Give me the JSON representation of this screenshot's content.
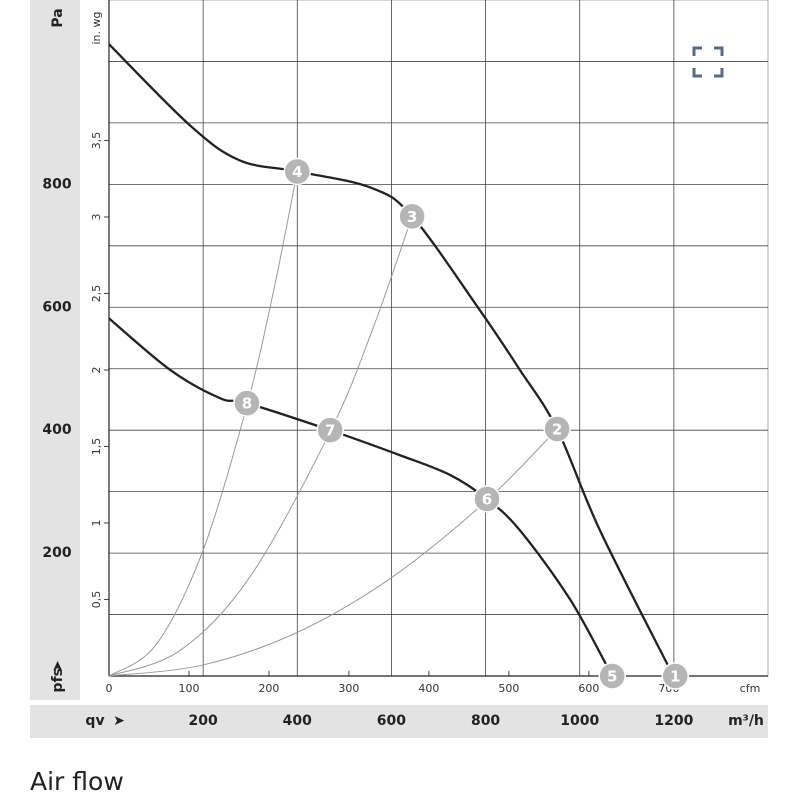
{
  "chart_data": {
    "type": "line",
    "title": "Air flow",
    "y_label": "Pa",
    "y2_label": "in. wg",
    "y_symbol": "pfs",
    "x_symbol": "qv",
    "x_label": "m³/h",
    "x2_label": "cfm",
    "xlim": [
      0,
      1400
    ],
    "xticks": [
      200,
      400,
      600,
      800,
      1000,
      1200
    ],
    "ylim": [
      0,
      1100
    ],
    "yticks": [
      200,
      400,
      600,
      800
    ],
    "yticks_minor": [
      100,
      300,
      500,
      700,
      900,
      1000
    ],
    "x2lim": [
      0,
      824
    ],
    "x2ticks": [
      0,
      100,
      200,
      300,
      400,
      500,
      600,
      700
    ],
    "y2lim": [
      0,
      4.418
    ],
    "y2ticks": [
      {
        "value": 0.5,
        "label": "0,5"
      },
      1,
      {
        "value": 1.5,
        "label": "1,5"
      },
      2,
      {
        "value": 2.5,
        "label": "2,5"
      },
      3,
      {
        "value": 3.5,
        "label": "3,5"
      }
    ],
    "grid": true,
    "series": [
      {
        "color": "#222222",
        "x": [
          0,
          172,
          278,
          400,
          555,
          644,
          788,
          873,
          952,
          1043,
          1199
        ],
        "values": [
          1028,
          896,
          839,
          821,
          795,
          748,
          595,
          498,
          402,
          237,
          0
        ]
      },
      {
        "color": "#222222",
        "x": [
          0,
          130,
          236,
          293,
          470,
          619,
          725,
          803,
          873,
          980,
          1069
        ],
        "values": [
          582,
          498,
          452,
          444,
          400,
          359,
          327,
          288,
          237,
          124,
          0
        ]
      }
    ],
    "system_curves": [
      {
        "color": "#999999",
        "x": [
          0,
          100,
          200,
          293,
          350,
          400
        ],
        "values": [
          0,
          51,
          205,
          440,
          628,
          821
        ]
      },
      {
        "color": "#999999",
        "x": [
          0,
          150,
          300,
          470,
          560,
          644
        ],
        "values": [
          0,
          41,
          162,
          398,
          564,
          748
        ]
      },
      {
        "color": "#999999",
        "x": [
          0,
          200,
          400,
          600,
          803,
          952
        ],
        "values": [
          0,
          18,
          71,
          160,
          286,
          402
        ]
      }
    ],
    "points": {
      "color": "#b5b5b5",
      "labels": [
        "1",
        "2",
        "3",
        "4",
        "5",
        "6",
        "7",
        "8"
      ],
      "x": [
        1203,
        952,
        644,
        400,
        1069,
        803,
        470,
        293
      ],
      "values": [
        0,
        402,
        748,
        821,
        0,
        288,
        400,
        444
      ]
    }
  }
}
